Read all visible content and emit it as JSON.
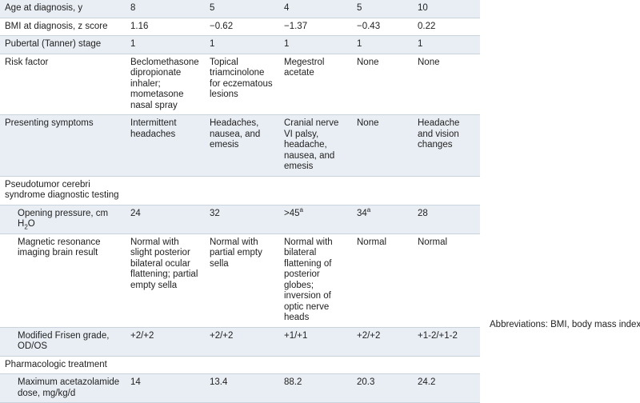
{
  "table": {
    "rows": [
      {
        "label": "Age at diagnosis, y",
        "values": [
          "8",
          "5",
          "4",
          "5",
          "10"
        ]
      },
      {
        "label": "BMI at diagnosis, z score",
        "values": [
          "1.16",
          "−0.62",
          "−1.37",
          "−0.43",
          "0.22"
        ]
      },
      {
        "label": "Pubertal (Tanner) stage",
        "values": [
          "1",
          "1",
          "1",
          "1",
          "1"
        ]
      },
      {
        "label": "Risk factor",
        "values": [
          "Beclomethasone dipropionate inhaler; mometasone nasal spray",
          "Topical triamcinolone for eczematous lesions",
          "Megestrol acetate",
          "None",
          "None"
        ]
      },
      {
        "label": "Presenting symptoms",
        "values": [
          "Intermittent headaches",
          "Headaches, nausea, and emesis",
          "Cranial nerve VI palsy, headache, nausea, and emesis",
          "None",
          "Headache and vision changes"
        ]
      }
    ],
    "sections": [
      {
        "title": "Pseudotumor cerebri syndrome diagnostic testing",
        "rows": [
          {
            "label": [
              "Opening pressure, cm H",
              "2",
              "O"
            ],
            "values": [
              "24",
              "32",
              {
                "text": ">45",
                "note": "a"
              },
              {
                "text": "34",
                "note": "a"
              },
              "28"
            ]
          },
          {
            "label": "Magnetic resonance imaging brain result",
            "values": [
              "Normal with slight posterior bilateral ocular flattening; partial empty sella",
              "Normal with partial empty sella",
              "Normal with bilateral flattening of posterior globes; inversion of optic nerve heads",
              "Normal",
              "Normal"
            ]
          },
          {
            "label": "Modified Frisen grade, OD/OS",
            "values": [
              "+2/+2",
              "+2/+2",
              "+1/+1",
              "+2/+2",
              "+1-2/+1-2"
            ]
          }
        ]
      },
      {
        "title": "Pharmacologic treatment",
        "rows": [
          {
            "label": "Maximum acetazolamide dose, mg/kg/d",
            "values": [
              "14",
              "13.4",
              "88.2",
              "20.3",
              "24.2"
            ]
          }
        ]
      }
    ]
  },
  "footnote": "Abbreviations: BMI, body mass index"
}
